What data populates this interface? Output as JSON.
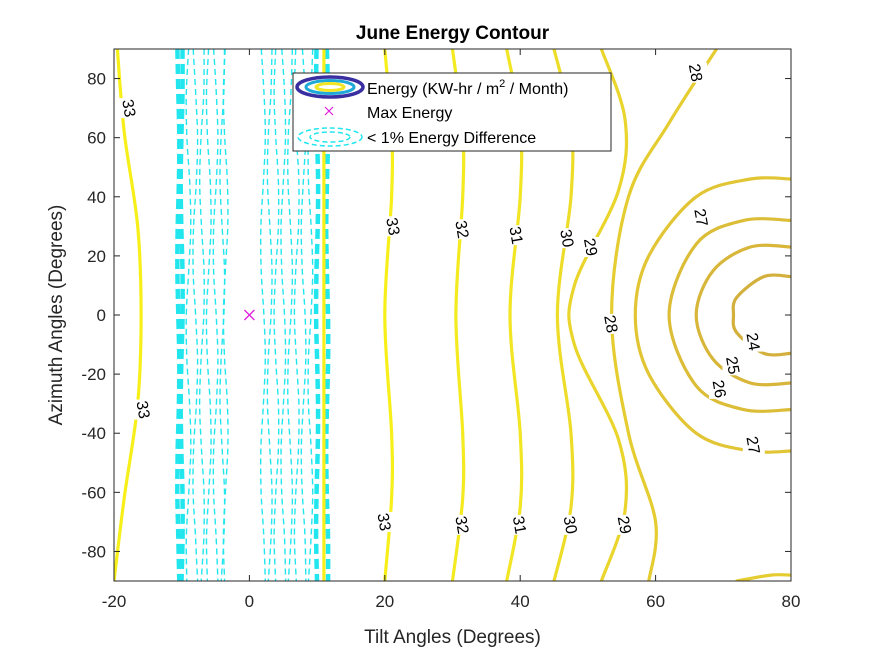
{
  "chart_data": {
    "type": "contour",
    "title": "June Energy Contour",
    "xlabel": "Tilt Angles (Degrees)",
    "ylabel": "Azimuth Angles (Degrees)",
    "xlim": [
      -20,
      80
    ],
    "ylim": [
      -90,
      90
    ],
    "xticks": [
      -20,
      0,
      20,
      40,
      60,
      80
    ],
    "yticks": [
      -80,
      -60,
      -40,
      -20,
      0,
      20,
      40,
      60,
      80
    ],
    "grid": false,
    "legend": {
      "position": "top-center",
      "entries": [
        {
          "label_prefix": "Energy (KW-hr / m",
          "label_sup": "2",
          "label_suffix": " / Month)"
        },
        {
          "label": "Max Energy"
        },
        {
          "label": "< 1% Energy Difference"
        }
      ]
    },
    "colors": {
      "c33": "#f7ef1a",
      "c32": "#f4ea20",
      "c31": "#f2e524",
      "c30": "#eedd28",
      "c29": "#ead52c",
      "c28": "#e5cc30",
      "c27": "#e2c535",
      "c26": "#dcbd38",
      "c25": "#d8b63a",
      "c24": "#d3b03c",
      "band": "#22e6ee",
      "max_marker": "#e020e0"
    },
    "max_point": {
      "x": 0,
      "y": 0
    },
    "energy_contours": [
      {
        "level": 33,
        "points": [
          [
            -20,
            -90
          ],
          [
            -18.5,
            -62
          ],
          [
            -16.5,
            -30
          ],
          [
            -16,
            0
          ],
          [
            -16.5,
            30
          ],
          [
            -18.5,
            62
          ],
          [
            -19.5,
            90
          ]
        ],
        "labels": [
          {
            "x": -17.7,
            "y": 70,
            "text": "33"
          },
          {
            "x": -15.6,
            "y": -32,
            "text": "33"
          }
        ]
      },
      {
        "level": 33,
        "points": [
          [
            11,
            90
          ],
          [
            11,
            -90
          ]
        ],
        "labels": []
      },
      {
        "level": 33,
        "points": [
          [
            20,
            -90
          ],
          [
            21,
            -62
          ],
          [
            21,
            -40
          ],
          [
            20,
            0
          ],
          [
            21,
            40
          ],
          [
            21,
            62
          ],
          [
            20,
            90
          ]
        ],
        "labels": [
          {
            "x": 21.3,
            "y": 30,
            "text": "33"
          },
          {
            "x": 20,
            "y": -70,
            "text": "33"
          }
        ]
      },
      {
        "level": 32,
        "points": [
          [
            30,
            -90
          ],
          [
            31.5,
            -62
          ],
          [
            31.5,
            -40
          ],
          [
            30.5,
            0
          ],
          [
            31.5,
            40
          ],
          [
            31.5,
            62
          ],
          [
            30,
            90
          ]
        ],
        "labels": [
          {
            "x": 31.5,
            "y": 29,
            "text": "32"
          },
          {
            "x": 31.5,
            "y": -71,
            "text": "32"
          }
        ]
      },
      {
        "level": 31,
        "points": [
          [
            38,
            -90
          ],
          [
            40,
            -65
          ],
          [
            40,
            -40
          ],
          [
            38.5,
            0
          ],
          [
            40,
            40
          ],
          [
            40,
            65
          ],
          [
            38,
            90
          ]
        ],
        "labels": [
          {
            "x": 39.5,
            "y": 27,
            "text": "31"
          },
          {
            "x": 40,
            "y": -71,
            "text": "31"
          }
        ]
      },
      {
        "level": 30,
        "points": [
          [
            45,
            -90
          ],
          [
            47.5,
            -65
          ],
          [
            47.5,
            -40
          ],
          [
            45.5,
            0
          ],
          [
            47.5,
            40
          ],
          [
            47.5,
            65
          ],
          [
            45,
            90
          ]
        ],
        "labels": [
          {
            "x": 47,
            "y": 26,
            "text": "30"
          },
          {
            "x": 47.5,
            "y": -71,
            "text": "30"
          }
        ]
      },
      {
        "level": 29,
        "points": [
          [
            52,
            -90
          ],
          [
            55.5,
            -66
          ],
          [
            54.5,
            -42
          ],
          [
            48,
            -10
          ],
          [
            48,
            10
          ],
          [
            54.5,
            42
          ],
          [
            55.5,
            66
          ],
          [
            52,
            90
          ]
        ],
        "labels": [
          {
            "x": 50.5,
            "y": 23,
            "text": "29"
          },
          {
            "x": 55.5,
            "y": -71,
            "text": "29"
          }
        ]
      },
      {
        "level": 28,
        "points": [
          [
            59,
            -90
          ],
          [
            60,
            -70
          ],
          [
            56,
            -40
          ],
          [
            53.5,
            0
          ],
          [
            56,
            40
          ],
          [
            62,
            65
          ],
          [
            69,
            90
          ]
        ],
        "labels": [
          {
            "x": 53.5,
            "y": -3,
            "text": "28"
          },
          {
            "x": 66,
            "y": 82,
            "text": "28"
          }
        ]
      },
      {
        "level": 27,
        "points": [
          [
            80,
            -46
          ],
          [
            74,
            -46
          ],
          [
            66,
            -40
          ],
          [
            59,
            -20
          ],
          [
            57,
            0
          ],
          [
            59,
            20
          ],
          [
            66,
            40
          ],
          [
            74,
            46
          ],
          [
            80,
            46
          ]
        ],
        "labels": [
          {
            "x": 66.8,
            "y": 33,
            "text": "27"
          },
          {
            "x": 74.5,
            "y": -44,
            "text": "27"
          }
        ]
      },
      {
        "level": 26,
        "points": [
          [
            80,
            -32
          ],
          [
            73,
            -32
          ],
          [
            66,
            -24
          ],
          [
            62,
            0
          ],
          [
            66,
            24
          ],
          [
            73,
            32
          ],
          [
            80,
            32
          ]
        ],
        "labels": [
          {
            "x": 69.5,
            "y": -25,
            "text": "26"
          }
        ]
      },
      {
        "level": 25,
        "points": [
          [
            80,
            -23
          ],
          [
            74,
            -23
          ],
          [
            68.5,
            -15
          ],
          [
            66,
            0
          ],
          [
            68.5,
            15
          ],
          [
            74,
            23
          ],
          [
            80,
            23
          ]
        ],
        "labels": [
          {
            "x": 71.5,
            "y": -17,
            "text": "25"
          }
        ]
      },
      {
        "level": 24,
        "points": [
          [
            80,
            -13
          ],
          [
            76,
            -13
          ],
          [
            72,
            -6
          ],
          [
            71.5,
            0
          ],
          [
            72,
            6
          ],
          [
            76,
            13
          ],
          [
            80,
            13
          ]
        ],
        "labels": [
          {
            "x": 74.5,
            "y": -9,
            "text": "24"
          }
        ]
      },
      {
        "level": 28,
        "points": [
          [
            72,
            -90
          ],
          [
            77,
            -88
          ],
          [
            80,
            -88
          ]
        ],
        "labels": []
      }
    ],
    "band_contours": [
      {
        "x": -10.5,
        "style": "thick"
      },
      {
        "x": -10,
        "style": "thick"
      },
      {
        "x": -9,
        "style": "thin"
      },
      {
        "x": -8,
        "style": "thin"
      },
      {
        "x": -7,
        "style": "thin"
      },
      {
        "x": -6,
        "style": "thin"
      },
      {
        "x": -5,
        "style": "thin"
      },
      {
        "x": -4,
        "style": "thin"
      },
      {
        "x": -3.5,
        "style": "thin"
      },
      {
        "x": 2,
        "style": "thin"
      },
      {
        "x": 3,
        "style": "thin"
      },
      {
        "x": 4,
        "style": "thin"
      },
      {
        "x": 5,
        "style": "thin"
      },
      {
        "x": 6,
        "style": "thin"
      },
      {
        "x": 7,
        "style": "thin"
      },
      {
        "x": 8,
        "style": "thin"
      },
      {
        "x": 9,
        "style": "thin"
      },
      {
        "x": 10,
        "style": "thick"
      },
      {
        "x": 11.5,
        "style": "thick"
      }
    ]
  }
}
